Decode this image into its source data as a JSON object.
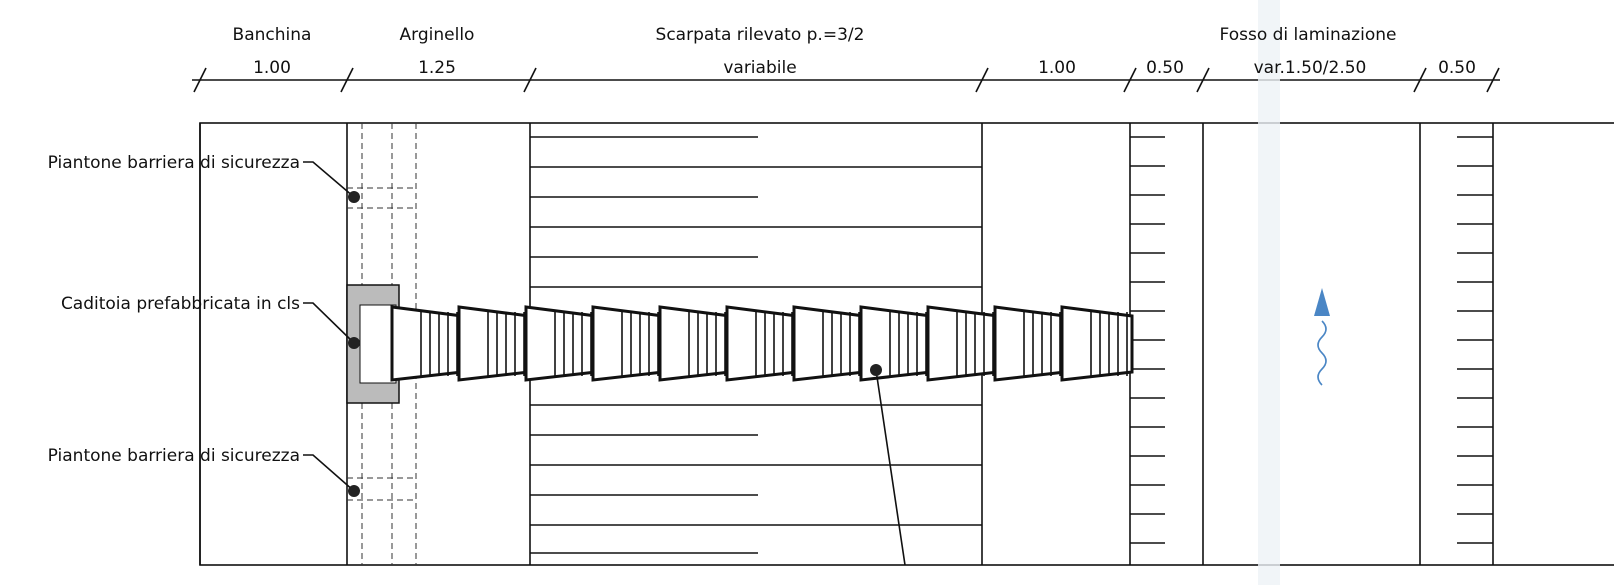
{
  "headers": [
    "Banchina",
    "Arginello",
    "Scarpata rilevato p.=3/2",
    "Fosso di laminazione"
  ],
  "dimensions": [
    "1.00",
    "1.25",
    "variabile",
    "1.00",
    "0.50",
    "var.1.50/2.50",
    "0.50"
  ],
  "callouts": [
    "Piantone barriera di sicurezza",
    "Caditoia prefabbricata in cls",
    "Piantone barriera di sicurezza"
  ]
}
